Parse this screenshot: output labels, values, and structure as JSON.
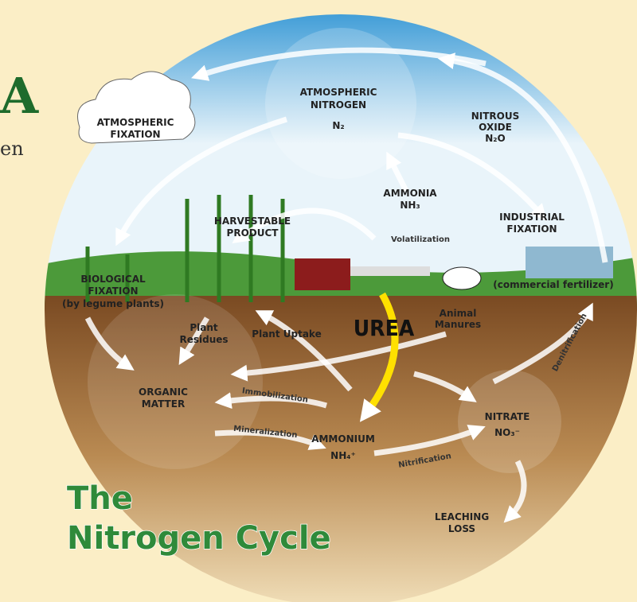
{
  "header": {
    "cut_letter": "A",
    "cut_word": "en"
  },
  "labels": {
    "atmospheric_fixation": [
      "ATMOSPHERIC",
      "FIXATION"
    ],
    "atmospheric_nitrogen": [
      "ATMOSPHERIC",
      "NITROGEN",
      "N₂"
    ],
    "nitrous_oxide": [
      "NITROUS",
      "OXIDE",
      "N₂O"
    ],
    "ammonia": [
      "AMMONIA",
      "NH₃"
    ],
    "harvestable_product": [
      "HARVESTABLE",
      "PRODUCT"
    ],
    "volatilization": "Volatilization",
    "industrial_fixation": [
      "INDUSTRIAL",
      "FIXATION"
    ],
    "biological_fixation": [
      "BIOLOGICAL",
      "FIXATION",
      "(by legume plants)"
    ],
    "commercial_fertilizer": "(commercial fertilizer)",
    "urea": "UREA",
    "animal_manures": [
      "Animal",
      "Manures"
    ],
    "plant_residues": [
      "Plant",
      "Residues"
    ],
    "plant_uptake": "Plant Uptake",
    "organic_matter": [
      "ORGANIC",
      "MATTER"
    ],
    "immobilization": "Immobilization",
    "denitrification": "Denitrification",
    "nitrate": [
      "NITRATE",
      "NO₃⁻"
    ],
    "mineralization": "Mineralization",
    "ammonium": [
      "AMMONIUM",
      "NH₄⁺"
    ],
    "nitrification": "Nitrification",
    "leaching_loss": [
      "LEACHING",
      "LOSS"
    ]
  },
  "title": [
    "The",
    "Nitrogen Cycle"
  ]
}
